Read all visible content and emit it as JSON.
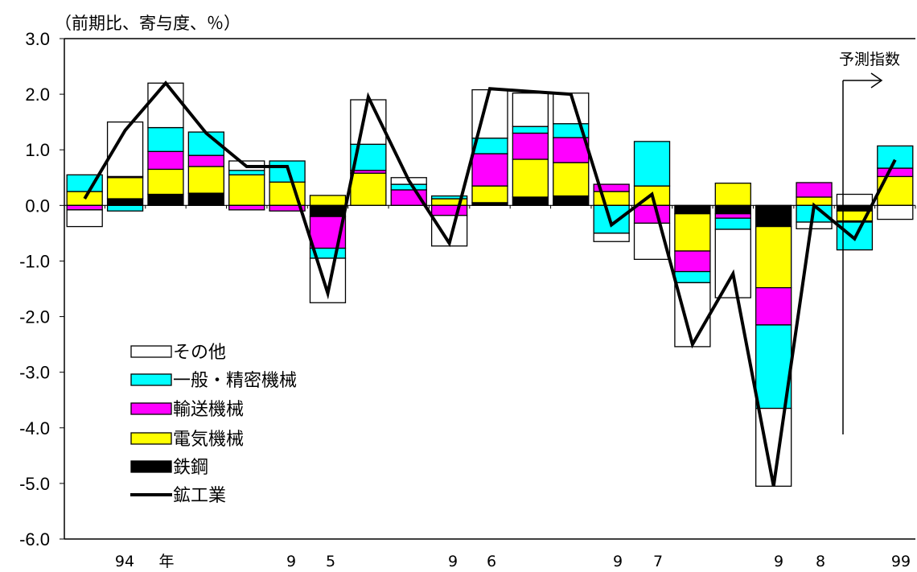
{
  "chart_data": {
    "type": "bar",
    "unit_label": "（前期比、寄与度、％）",
    "forecast_label": "予測指数",
    "ylim": [
      -6.0,
      3.0
    ],
    "yticks": [
      "3.0",
      "2.0",
      "1.0",
      "0.0",
      "-1.0",
      "-2.0",
      "-3.0",
      "-4.0",
      "-5.0",
      "-6.0"
    ],
    "x_tick_labels": [
      "94",
      "年",
      "9",
      "5",
      "9",
      "6",
      "9",
      "7",
      "9",
      "8",
      "99"
    ],
    "period_count": 21,
    "colors": {
      "steel": "#000000",
      "electrical": "#ffff00",
      "transport": "#ff00ff",
      "general": "#00ffff",
      "other": "#ffffff",
      "line": "#000000"
    },
    "series": [
      {
        "key": "steel",
        "name": "鉄鋼",
        "values": [
          0,
          0.12,
          0.2,
          0.22,
          0,
          0,
          -0.2,
          0,
          0,
          0,
          0.05,
          0.15,
          0.17,
          0,
          0,
          -0.15,
          -0.15,
          -0.38,
          0,
          -0.1,
          0
        ]
      },
      {
        "key": "electrical",
        "name": "電気機械",
        "values": [
          0.25,
          0.38,
          0.45,
          0.48,
          0.55,
          0.42,
          0.18,
          0.58,
          0,
          0.12,
          0.3,
          0.68,
          0.6,
          0.25,
          0.35,
          -0.67,
          0.4,
          -1.1,
          0.15,
          -0.18,
          0.52
        ]
      },
      {
        "key": "transport",
        "name": "輸送機械",
        "values": [
          -0.08,
          0.02,
          0.32,
          0.2,
          -0.08,
          -0.1,
          -0.57,
          0.05,
          0.28,
          -0.18,
          0.58,
          0.47,
          0.45,
          0.13,
          -0.32,
          -0.37,
          -0.08,
          -0.67,
          0.26,
          -0.02,
          0.15
        ]
      },
      {
        "key": "general",
        "name": "一般・精密機械",
        "values": [
          0.3,
          -0.1,
          0.43,
          0.42,
          0.08,
          0.38,
          -0.18,
          0.47,
          0.1,
          0.05,
          0.28,
          0.12,
          0.25,
          -0.5,
          0.8,
          -0.2,
          -0.2,
          -1.5,
          -0.3,
          -0.5,
          0.4
        ]
      },
      {
        "key": "other",
        "name": "その他",
        "values": [
          -0.3,
          0.98,
          0.8,
          0,
          0.17,
          0,
          -0.8,
          0.8,
          0.12,
          -0.55,
          0.87,
          0.6,
          0.55,
          -0.15,
          -0.65,
          -1.15,
          -1.23,
          -1.4,
          -0.12,
          0.2,
          -0.25
        ]
      },
      {
        "key": "line",
        "name": "鉱工業",
        "values": [
          0.12,
          1.35,
          2.2,
          1.3,
          0.7,
          0.7,
          -1.58,
          1.95,
          0.45,
          -0.68,
          2.1,
          2.05,
          2.0,
          -0.35,
          0.2,
          -2.5,
          -1.23,
          -5.05,
          0.0,
          -0.6,
          0.82
        ]
      }
    ],
    "legend_order": [
      "other",
      "general",
      "transport",
      "electrical",
      "steel",
      "line"
    ]
  }
}
